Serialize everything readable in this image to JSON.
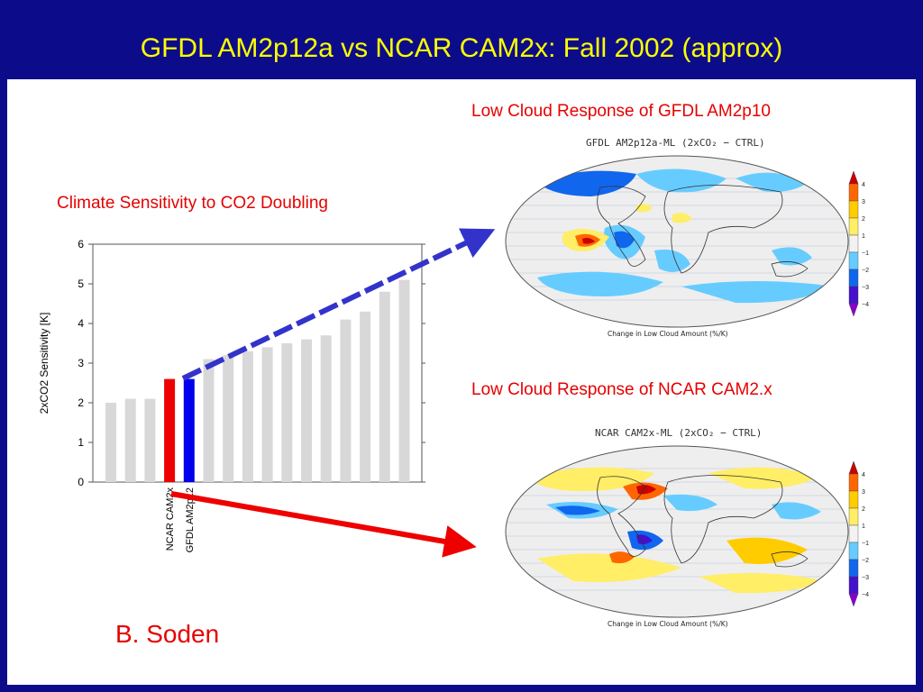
{
  "slide": {
    "title": "GFDL AM2p12a vs NCAR CAM2x: Fall 2002 (approx)",
    "author": "B. Soden",
    "colors": {
      "background": "#0c0c8a",
      "title": "#ffff00",
      "headings": "#e60000"
    }
  },
  "left_heading": "Climate Sensitivity to CO2 Doubling",
  "chart_data": {
    "type": "bar",
    "title": "Climate Sensitivity to CO2 Doubling",
    "ylabel": "2xCO2 Sensitivity [K]",
    "xlabel": "",
    "ylim": [
      0,
      6
    ],
    "yticks": [
      0,
      1,
      2,
      3,
      4,
      5,
      6
    ],
    "grid": false,
    "values": [
      2.0,
      2.1,
      2.1,
      2.6,
      2.6,
      3.1,
      3.2,
      3.3,
      3.4,
      3.5,
      3.6,
      3.7,
      4.1,
      4.3,
      4.8,
      5.1
    ],
    "bar_colors": [
      "#d8d8d8",
      "#d8d8d8",
      "#d8d8d8",
      "#ee0000",
      "#0000ee",
      "#d8d8d8",
      "#d8d8d8",
      "#d8d8d8",
      "#d8d8d8",
      "#d8d8d8",
      "#d8d8d8",
      "#d8d8d8",
      "#d8d8d8",
      "#d8d8d8",
      "#d8d8d8",
      "#d8d8d8"
    ],
    "labeled_bars": [
      {
        "index": 3,
        "label": "NCAR CAM2x"
      },
      {
        "index": 4,
        "label": "GFDL AM2p12"
      }
    ]
  },
  "maps": [
    {
      "heading": "Low Cloud Response of GFDL AM2p10",
      "title": "GFDL AM2p12a-ML (2xCO₂ − CTRL)",
      "caption": "Change in Low Cloud Amount (%/K)",
      "colorbar_labels": [
        "4",
        "3",
        "2",
        "1",
        "−1",
        "−2",
        "−3",
        "−4"
      ]
    },
    {
      "heading": "Low Cloud Response of NCAR CAM2.x",
      "title": "NCAR CAM2x-ML (2xCO₂ − CTRL)",
      "caption": "Change in Low Cloud Amount (%/K)",
      "colorbar_labels": [
        "4",
        "3",
        "2",
        "1",
        "−1",
        "−2",
        "−3",
        "−4"
      ]
    }
  ],
  "colorbar_colors": [
    "#cc0000",
    "#ff6600",
    "#ffcc00",
    "#ffee66",
    "#f2f2f2",
    "#66ccff",
    "#1166ee",
    "#4411cc",
    "#8800cc"
  ],
  "arrows": [
    {
      "name": "blue-arrow",
      "color": "#3333cc",
      "target": "GFDL map"
    },
    {
      "name": "red-arrow",
      "color": "#ee0000",
      "target": "NCAR map"
    }
  ]
}
